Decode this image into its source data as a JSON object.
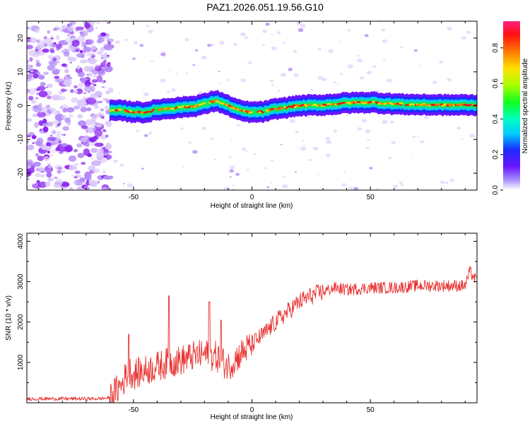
{
  "title": "PAZ1.2026.051.19.56.G10",
  "colors": {
    "snr_line": "#e8312f",
    "ridge_core": "#e8141e",
    "axis": "#000000",
    "scatter_purple": "#7a2cf0"
  },
  "chart_data": [
    {
      "type": "heatmap",
      "title": "PAZ1.2026.051.19.56.G10",
      "xlabel": "Height of straight line (km)",
      "ylabel": "Frequency (Hz)",
      "xlim": [
        -95,
        95
      ],
      "ylim": [
        -25,
        25
      ],
      "x_ticks": [
        -50,
        0,
        50
      ],
      "y_ticks": [
        20,
        10,
        0,
        -10,
        -20
      ],
      "x_tick_labels": [
        "-50",
        "0",
        "50"
      ],
      "y_tick_labels": [
        "20",
        "10",
        "0",
        "-10",
        "-20"
      ],
      "ridge": {
        "x": [
          -60,
          -55,
          -50,
          -45,
          -40,
          -35,
          -30,
          -25,
          -20,
          -15,
          -10,
          -5,
          0,
          5,
          10,
          15,
          20,
          30,
          40,
          50,
          60,
          70,
          80,
          90,
          95
        ],
        "y": [
          -1.5,
          -1.5,
          -1.8,
          -2.0,
          -1.2,
          -0.8,
          -0.5,
          -0.2,
          0.5,
          1.5,
          0,
          -1.5,
          -2.0,
          -1.8,
          -1.0,
          -0.5,
          0,
          0.2,
          0.8,
          1.0,
          0.5,
          0.3,
          0.2,
          0.2,
          0.2
        ]
      },
      "colorbar": {
        "label": "Normalized spectral amplitude",
        "range": [
          0.0,
          0.95
        ],
        "ticks": [
          0.0,
          0.2,
          0.4,
          0.6,
          0.8
        ],
        "tick_labels": [
          "0.0",
          "0.2",
          "0.4",
          "0.6",
          "0.8"
        ]
      }
    },
    {
      "type": "line",
      "xlabel": "Height of straight line (km)",
      "ylabel": "SNR (10 * v/v)",
      "xlim": [
        -95,
        95
      ],
      "ylim": [
        0,
        4200
      ],
      "x_ticks": [
        -50,
        0,
        50
      ],
      "y_ticks": [
        1000,
        2000,
        3000,
        4000
      ],
      "x_tick_labels": [
        "-50",
        "0",
        "50"
      ],
      "y_tick_labels": [
        "1000",
        "2000",
        "3000",
        "4000"
      ],
      "series": [
        {
          "name": "SNR",
          "x": [
            -95,
            -80,
            -65,
            -60,
            -55,
            -52,
            -50,
            -45,
            -40,
            -35,
            -30,
            -25,
            -20,
            -15,
            -10,
            -5,
            0,
            5,
            10,
            15,
            20,
            25,
            30,
            35,
            40,
            50,
            60,
            70,
            80,
            90,
            92,
            95
          ],
          "y": [
            100,
            100,
            100,
            120,
            450,
            800,
            700,
            800,
            900,
            1000,
            1050,
            1150,
            1200,
            1150,
            900,
            1200,
            1450,
            1700,
            2000,
            2250,
            2500,
            2650,
            2750,
            2850,
            2800,
            2850,
            2850,
            2900,
            2900,
            2900,
            3250,
            3000
          ]
        }
      ],
      "spikes": [
        {
          "x": -52,
          "y": 1700
        },
        {
          "x": -35,
          "y": 2650
        },
        {
          "x": -18,
          "y": 2500
        },
        {
          "x": -13,
          "y": 2050
        }
      ]
    }
  ]
}
